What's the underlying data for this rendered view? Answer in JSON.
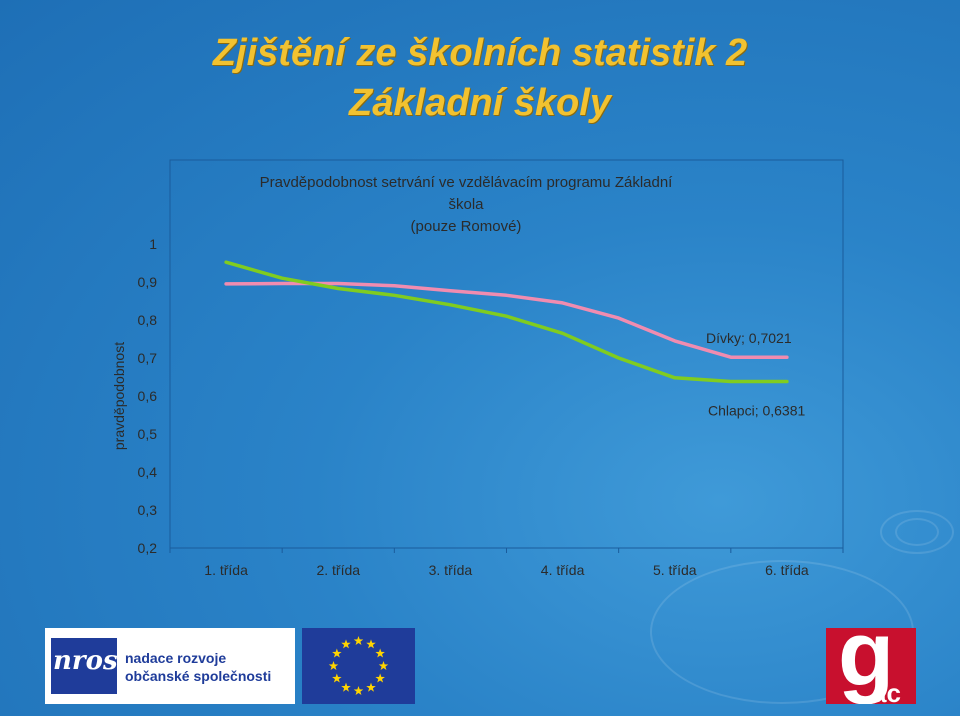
{
  "slide": {
    "title_line1": "Zjištění ze školních statistik 2",
    "title_line2": "Základní školy"
  },
  "chart_data": {
    "type": "line",
    "title_line1": "Pravděpodobnost setrvání ve vzdělávacím programu Základní",
    "title_line2": "škola",
    "title_line3": "(pouze Romové)",
    "ylabel": "pravděpodobnost",
    "categories": [
      "1. třída",
      "2. třída",
      "3. třída",
      "4. třída",
      "5. třída",
      "6. třída"
    ],
    "x": [
      1,
      1.5,
      2,
      2.5,
      3,
      3.5,
      4,
      4.5,
      5,
      5.5,
      6
    ],
    "ylim": [
      0.2,
      1
    ],
    "yticks": [
      "1",
      "0,9",
      "0,8",
      "0,7",
      "0,6",
      "0,5",
      "0,4",
      "0,3",
      "0,2"
    ],
    "ytick_values": [
      1,
      0.9,
      0.8,
      0.7,
      0.6,
      0.5,
      0.4,
      0.3,
      0.2
    ],
    "series": [
      {
        "name": "Dívky",
        "color": "#f08cb0",
        "values": [
          0.895,
          0.896,
          0.896,
          0.89,
          0.877,
          0.865,
          0.845,
          0.805,
          0.745,
          0.7021,
          0.7021
        ],
        "data_label": "Dívky; 0,7021"
      },
      {
        "name": "Chlapci",
        "color": "#80cc20",
        "values": [
          0.952,
          0.91,
          0.883,
          0.865,
          0.84,
          0.81,
          0.765,
          0.7,
          0.648,
          0.6381,
          0.6381
        ],
        "data_label": "Chlapci; 0,6381"
      }
    ],
    "grid": false
  },
  "logos": {
    "nros_text": "nros",
    "nros_line1": "nadace rozvoje",
    "nros_line2": "občanské společnosti",
    "gac_text": "g",
    "gac_sub": "ac"
  },
  "colors": {
    "title": "#f2c230",
    "background": "#2a83c8",
    "eu_blue": "#1f3c9a",
    "eu_star": "#ffd400",
    "gac_red": "#c8102e"
  }
}
